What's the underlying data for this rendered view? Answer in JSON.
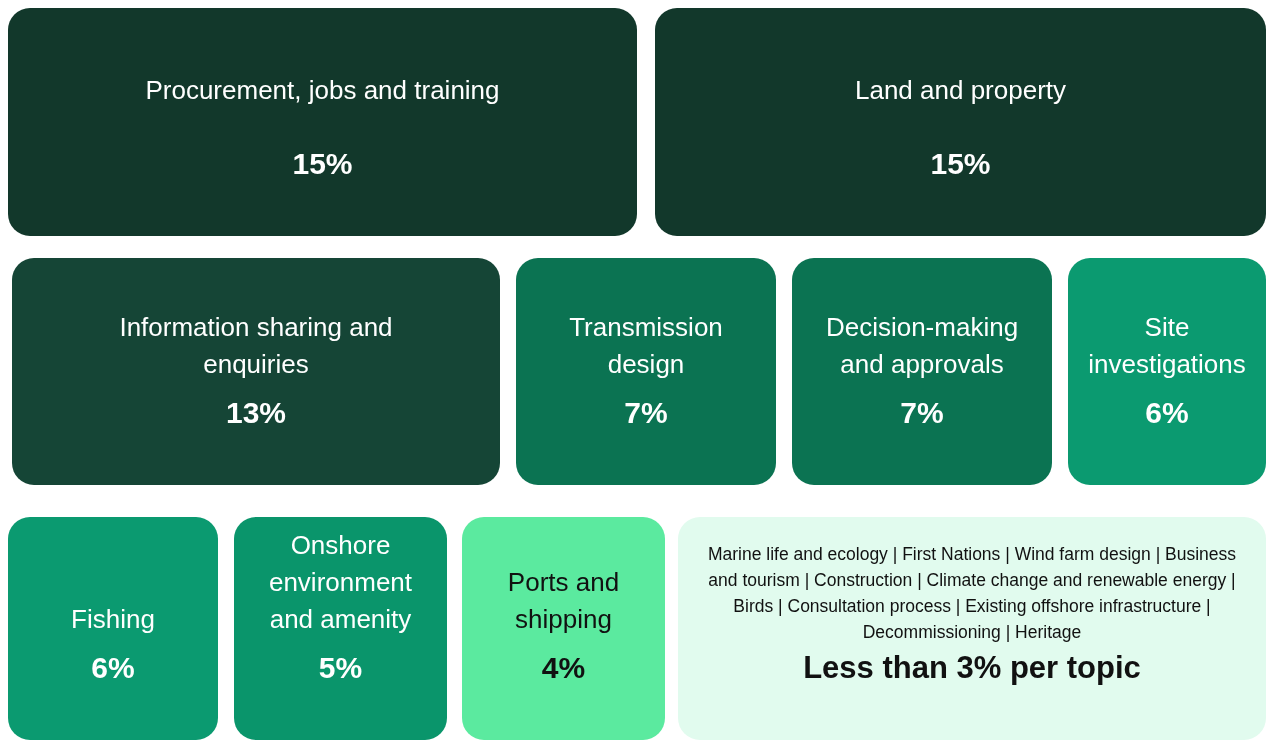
{
  "chart_data": {
    "type": "other",
    "categories": [
      "Procurement, jobs and training",
      "Land and property",
      "Information sharing and enquiries",
      "Transmission design",
      "Decision-making and approvals",
      "Site investigations",
      "Fishing",
      "Onshore environment and amenity",
      "Ports and shipping",
      "Marine life and ecology | First Nations | Wind farm design | Business and tourism | Construction | Climate change and renewable energy | Birds | Consultation process | Existing offshore infrastructure | Decommissioning | Heritage"
    ],
    "values": [
      15,
      15,
      13,
      7,
      7,
      6,
      6,
      5,
      4,
      null
    ],
    "value_labels": [
      "15%",
      "15%",
      "13%",
      "7%",
      "7%",
      "6%",
      "6%",
      "5%",
      "4%",
      "Less than 3% per topic"
    ],
    "colors": [
      "#12382b",
      "#12382b",
      "#154536",
      "#0b7352",
      "#0b7352",
      "#0b9a70",
      "#0b9a70",
      "#0a956b",
      "#5bea9f",
      "#e1fbee"
    ]
  }
}
